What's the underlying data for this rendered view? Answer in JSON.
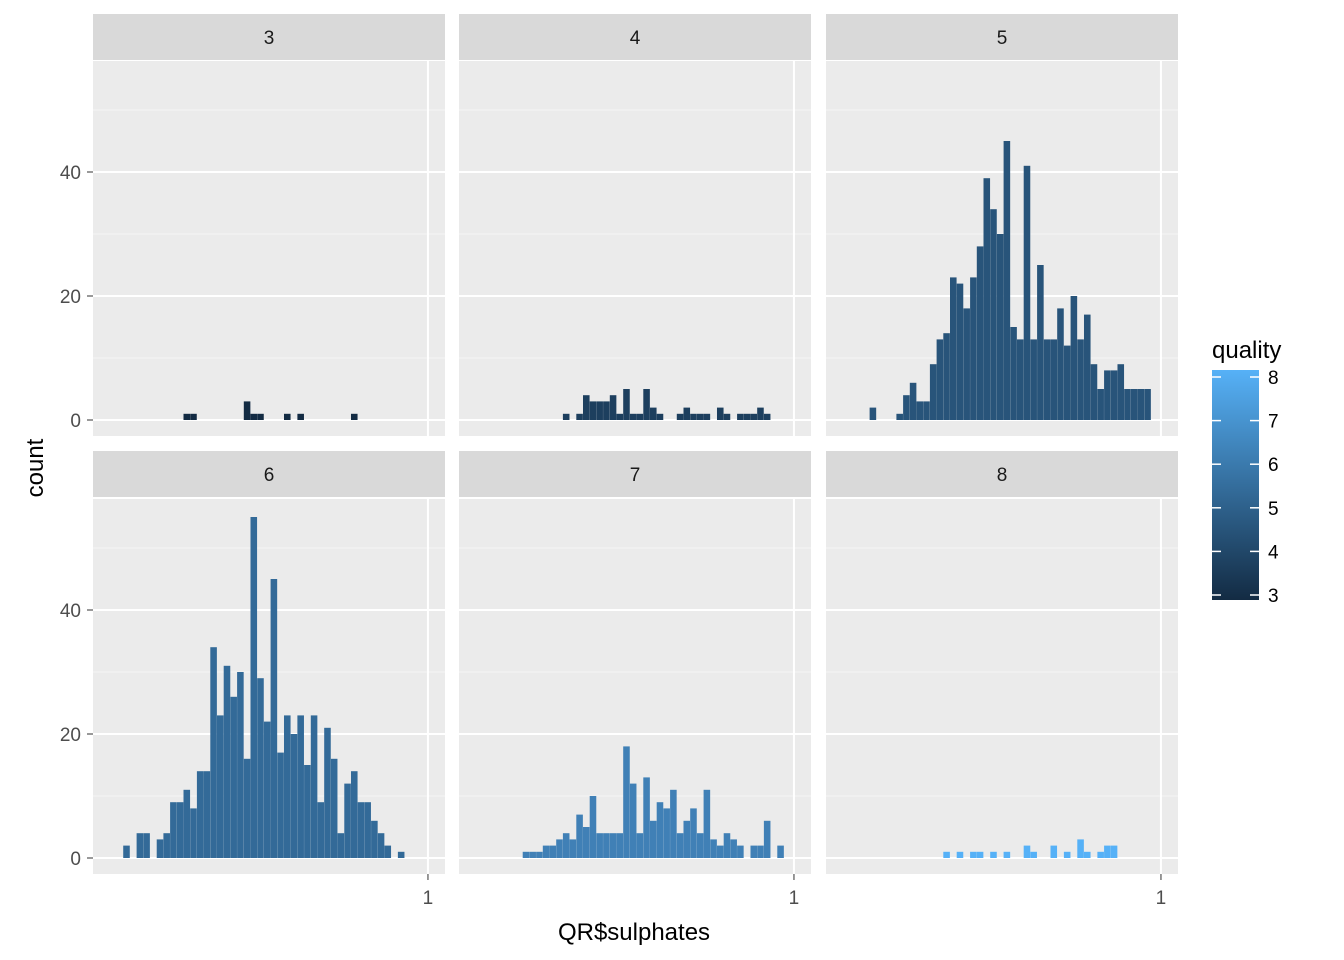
{
  "chart_data": {
    "type": "bar",
    "subtype": "faceted-histogram",
    "xlabel": "QR$sulphates",
    "ylabel": "count",
    "xlim": [
      0.0,
      1.0
    ],
    "ylim": [
      0,
      60
    ],
    "x_ticks": [
      {
        "value": 1.0,
        "label": "1"
      }
    ],
    "y_ticks": [
      {
        "value": 0,
        "label": "0"
      },
      {
        "value": 20,
        "label": "20"
      },
      {
        "value": 40,
        "label": "40"
      }
    ],
    "bin_width": 0.0196,
    "legend": {
      "title": "quality",
      "placement": "right",
      "labels": [
        "8",
        "7",
        "6",
        "5",
        "4",
        "3"
      ],
      "range": [
        3,
        8
      ],
      "color_low": "#132B43",
      "color_high": "#56B1F7"
    },
    "colors": {
      "3": "#132B43",
      "4": "#1D3F5E",
      "5": "#28547A",
      "6": "#336A98",
      "7": "#4080B6",
      "8": "#56B1F7"
    },
    "facets": [
      {
        "label": "3",
        "quality": 3,
        "bins": [
          [
            0.28,
            1
          ],
          [
            0.3,
            1
          ],
          [
            0.46,
            3
          ],
          [
            0.48,
            1
          ],
          [
            0.5,
            1
          ],
          [
            0.58,
            1
          ],
          [
            0.62,
            1
          ],
          [
            0.78,
            1
          ]
        ]
      },
      {
        "label": "4",
        "quality": 4,
        "bins": [
          [
            0.32,
            1
          ],
          [
            0.36,
            1
          ],
          [
            0.38,
            4
          ],
          [
            0.4,
            3
          ],
          [
            0.42,
            3
          ],
          [
            0.44,
            3
          ],
          [
            0.46,
            4
          ],
          [
            0.48,
            1
          ],
          [
            0.5,
            5
          ],
          [
            0.52,
            1
          ],
          [
            0.54,
            1
          ],
          [
            0.56,
            5
          ],
          [
            0.58,
            2
          ],
          [
            0.6,
            1
          ],
          [
            0.66,
            1
          ],
          [
            0.68,
            2
          ],
          [
            0.7,
            1
          ],
          [
            0.72,
            1
          ],
          [
            0.74,
            1
          ],
          [
            0.78,
            2
          ],
          [
            0.8,
            1
          ],
          [
            0.84,
            1
          ],
          [
            0.86,
            1
          ],
          [
            0.88,
            1
          ],
          [
            0.9,
            2
          ],
          [
            0.92,
            1
          ]
        ]
      },
      {
        "label": "5",
        "quality": 5,
        "bins": [
          [
            0.14,
            2
          ],
          [
            0.22,
            1
          ],
          [
            0.24,
            4
          ],
          [
            0.26,
            6
          ],
          [
            0.28,
            3
          ],
          [
            0.3,
            3
          ],
          [
            0.32,
            9
          ],
          [
            0.34,
            13
          ],
          [
            0.36,
            14
          ],
          [
            0.38,
            23
          ],
          [
            0.4,
            22
          ],
          [
            0.42,
            18
          ],
          [
            0.44,
            23
          ],
          [
            0.46,
            28
          ],
          [
            0.48,
            39
          ],
          [
            0.5,
            34
          ],
          [
            0.52,
            30
          ],
          [
            0.54,
            45
          ],
          [
            0.56,
            15
          ],
          [
            0.58,
            13
          ],
          [
            0.6,
            41
          ],
          [
            0.62,
            13
          ],
          [
            0.64,
            25
          ],
          [
            0.66,
            13
          ],
          [
            0.68,
            13
          ],
          [
            0.7,
            18
          ],
          [
            0.72,
            12
          ],
          [
            0.74,
            20
          ],
          [
            0.76,
            13
          ],
          [
            0.78,
            17
          ],
          [
            0.8,
            9
          ],
          [
            0.82,
            5
          ],
          [
            0.84,
            8
          ],
          [
            0.86,
            8
          ],
          [
            0.88,
            9
          ],
          [
            0.9,
            5
          ],
          [
            0.92,
            5
          ],
          [
            0.94,
            5
          ],
          [
            0.96,
            5
          ]
        ]
      },
      {
        "label": "6",
        "quality": 6,
        "bins": [
          [
            0.1,
            2
          ],
          [
            0.14,
            4
          ],
          [
            0.16,
            4
          ],
          [
            0.2,
            3
          ],
          [
            0.22,
            4
          ],
          [
            0.24,
            9
          ],
          [
            0.26,
            9
          ],
          [
            0.28,
            11
          ],
          [
            0.3,
            8
          ],
          [
            0.32,
            14
          ],
          [
            0.34,
            14
          ],
          [
            0.36,
            34
          ],
          [
            0.38,
            23
          ],
          [
            0.4,
            31
          ],
          [
            0.42,
            26
          ],
          [
            0.44,
            30
          ],
          [
            0.46,
            16
          ],
          [
            0.48,
            55
          ],
          [
            0.5,
            29
          ],
          [
            0.52,
            22
          ],
          [
            0.54,
            45
          ],
          [
            0.56,
            17
          ],
          [
            0.58,
            23
          ],
          [
            0.6,
            20
          ],
          [
            0.62,
            23
          ],
          [
            0.64,
            15
          ],
          [
            0.66,
            23
          ],
          [
            0.68,
            9
          ],
          [
            0.7,
            21
          ],
          [
            0.72,
            16
          ],
          [
            0.74,
            4
          ],
          [
            0.76,
            12
          ],
          [
            0.78,
            14
          ],
          [
            0.8,
            9
          ],
          [
            0.82,
            9
          ],
          [
            0.84,
            6
          ],
          [
            0.86,
            4
          ],
          [
            0.88,
            2
          ],
          [
            0.92,
            1
          ]
        ]
      },
      {
        "label": "7",
        "quality": 7,
        "bins": [
          [
            0.2,
            1
          ],
          [
            0.22,
            1
          ],
          [
            0.24,
            1
          ],
          [
            0.26,
            2
          ],
          [
            0.28,
            2
          ],
          [
            0.3,
            3
          ],
          [
            0.32,
            4
          ],
          [
            0.34,
            3
          ],
          [
            0.36,
            7
          ],
          [
            0.38,
            5
          ],
          [
            0.4,
            10
          ],
          [
            0.42,
            4
          ],
          [
            0.44,
            4
          ],
          [
            0.46,
            4
          ],
          [
            0.48,
            4
          ],
          [
            0.5,
            18
          ],
          [
            0.52,
            12
          ],
          [
            0.54,
            4
          ],
          [
            0.56,
            13
          ],
          [
            0.58,
            6
          ],
          [
            0.6,
            9
          ],
          [
            0.62,
            8
          ],
          [
            0.64,
            11
          ],
          [
            0.66,
            4
          ],
          [
            0.68,
            6
          ],
          [
            0.7,
            8
          ],
          [
            0.72,
            4
          ],
          [
            0.74,
            11
          ],
          [
            0.76,
            3
          ],
          [
            0.78,
            2
          ],
          [
            0.8,
            4
          ],
          [
            0.82,
            3
          ],
          [
            0.84,
            2
          ],
          [
            0.88,
            2
          ],
          [
            0.9,
            2
          ],
          [
            0.92,
            6
          ],
          [
            0.96,
            2
          ]
        ]
      },
      {
        "label": "8",
        "quality": 8,
        "bins": [
          [
            0.36,
            1
          ],
          [
            0.4,
            1
          ],
          [
            0.44,
            1
          ],
          [
            0.46,
            1
          ],
          [
            0.5,
            1
          ],
          [
            0.54,
            1
          ],
          [
            0.6,
            2
          ],
          [
            0.62,
            1
          ],
          [
            0.68,
            2
          ],
          [
            0.72,
            1
          ],
          [
            0.76,
            3
          ],
          [
            0.78,
            1
          ],
          [
            0.82,
            1
          ],
          [
            0.84,
            2
          ],
          [
            0.86,
            2
          ]
        ]
      }
    ]
  }
}
